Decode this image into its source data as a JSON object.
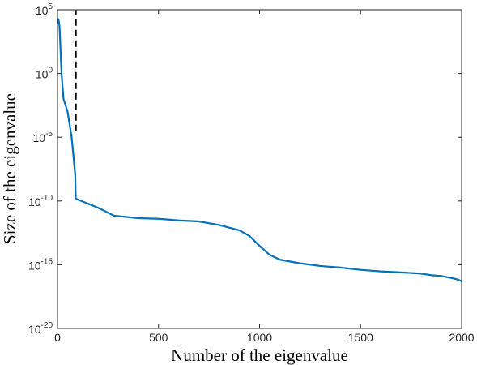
{
  "chart_data": {
    "type": "line",
    "xlabel": "Number of the eigenvalue",
    "ylabel": "Size of the eigenvalue",
    "xlim": [
      0,
      2000
    ],
    "ylim": [
      1e-20,
      100000.0
    ],
    "yscale": "log",
    "grid": false,
    "legend": "none",
    "x_ticks": [
      {
        "value": 0,
        "label": "0"
      },
      {
        "value": 500,
        "label": "500"
      },
      {
        "value": 1000,
        "label": "1000"
      },
      {
        "value": 1500,
        "label": "1500"
      },
      {
        "value": 2000,
        "label": "2000"
      }
    ],
    "y_ticks": [
      {
        "value": 1e-20,
        "base": "10",
        "exp": "-20"
      },
      {
        "value": 1e-15,
        "base": "10",
        "exp": "-15"
      },
      {
        "value": 1e-10,
        "base": "10",
        "exp": "-10"
      },
      {
        "value": 1e-05,
        "base": "10",
        "exp": "-5"
      },
      {
        "value": 1,
        "base": "10",
        "exp": "0"
      },
      {
        "value": 100000.0,
        "base": "10",
        "exp": "5"
      }
    ],
    "series": [
      {
        "color": "#0072BD",
        "x": [
          1,
          5,
          10,
          20,
          30,
          50,
          70,
          88,
          90,
          100,
          200,
          280,
          400,
          500,
          600,
          700,
          800,
          900,
          950,
          1000,
          1050,
          1100,
          1200,
          1300,
          1400,
          1500,
          1600,
          1700,
          1800,
          1850,
          1900,
          1950,
          1980,
          2000
        ],
        "y": [
          10000.0,
          18000.0,
          5000.0,
          1,
          0.01,
          0.001,
          1e-05,
          1e-08,
          1.6e-10,
          1.3e-10,
          3e-11,
          7e-12,
          4.5e-12,
          4e-12,
          3e-12,
          2.5e-12,
          1.3e-12,
          5e-13,
          1.8e-13,
          3e-14,
          6e-15,
          2.5e-15,
          1.3e-15,
          8e-16,
          6e-16,
          4e-16,
          3e-16,
          2.5e-16,
          2e-16,
          1.5e-16,
          1.3e-16,
          9e-17,
          7e-17,
          5e-17
        ]
      }
    ],
    "annotations": [
      {
        "type": "vertical-dashed-line",
        "x": 90,
        "y_from": 3e-05,
        "y_to": 300000.0,
        "color": "#000000"
      }
    ]
  }
}
